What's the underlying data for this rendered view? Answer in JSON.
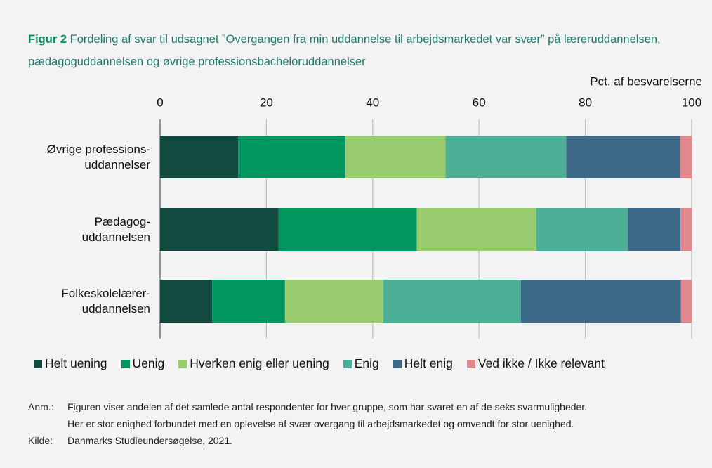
{
  "chart_data": {
    "type": "stacked_barh",
    "title_label": "Figur 2",
    "title": "Fordeling af svar til udsagnet ”Overgangen fra min uddannelse til arbejdsmarkedet var svær” på læ­reruddannelsen, pædagoguddannelsen og øvrige professionsbacheloruddannelser",
    "xlabel": "Pct. af besvarelserne",
    "categories": [
      "Øvrige professions-\nuddannelser",
      "Pædagog-\nuddannelsen",
      "Folkeskolelærer-\nuddannelsen"
    ],
    "series": [
      {
        "name": "Helt uening",
        "color": "#134a3f",
        "values": [
          14.7,
          22.3,
          9.8
        ]
      },
      {
        "name": "Uenig",
        "color": "#00965e",
        "values": [
          20.2,
          26.0,
          13.7
        ]
      },
      {
        "name": "Hverken enig eller uening",
        "color": "#99cc6e",
        "values": [
          18.8,
          22.5,
          18.5
        ]
      },
      {
        "name": "Enig",
        "color": "#4caf96",
        "values": [
          22.7,
          17.2,
          25.9
        ]
      },
      {
        "name": "Helt enig",
        "color": "#3e6a8a",
        "values": [
          21.4,
          9.9,
          30.1
        ]
      },
      {
        "name": "Ved ikke / Ikke relevant",
        "color": "#e0888c",
        "values": [
          2.2,
          2.1,
          2.0
        ]
      }
    ],
    "xlim": [
      0,
      100
    ],
    "xticks": [
      0,
      20,
      40,
      60,
      80,
      100
    ],
    "grid": true,
    "notes": [
      {
        "label": "Anm.:",
        "lines": [
          "Figuren viser andelen af det samlede antal respondenter for hver gruppe, som har svaret en af de seks svarmuligheder.",
          "Her er stor enighed forbundet med en oplevelse af svær overgang til arbejdsmarkedet og omvendt for stor uenighed."
        ]
      },
      {
        "label": "Kilde:",
        "lines": [
          "Danmarks Studieundersøgelse, 2021."
        ]
      }
    ]
  }
}
